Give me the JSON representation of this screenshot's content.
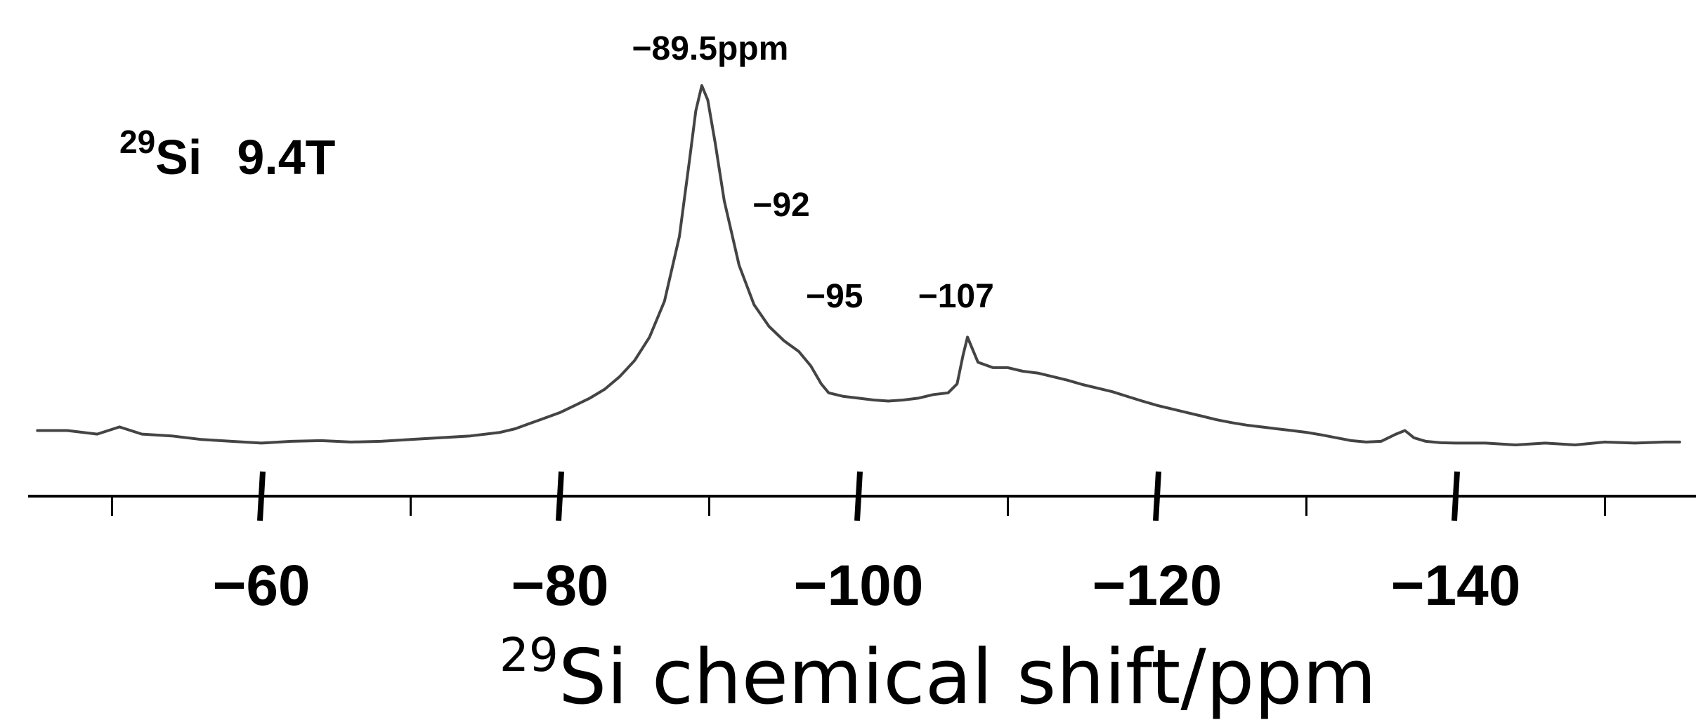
{
  "chart_data": {
    "type": "line",
    "title": "",
    "annotation": {
      "isotope_mass": "29",
      "nucleus": "Si",
      "field": "9.4T"
    },
    "xlabel": {
      "isotope_mass": "29",
      "text": "Si chemical shift/ppm"
    },
    "ylabel": "",
    "xlim": [
      -45,
      -155
    ],
    "grid": false,
    "legend": "none",
    "x_ticks": [
      {
        "value": -60,
        "label": "−60"
      },
      {
        "value": -80,
        "label": "−80"
      },
      {
        "value": -100,
        "label": "−100"
      },
      {
        "value": -120,
        "label": "−120"
      },
      {
        "value": -140,
        "label": "−140"
      }
    ],
    "x_minor_ticks": [
      -50,
      -70,
      -90,
      -110,
      -130,
      -150
    ],
    "peak_labels": [
      {
        "x": -89.5,
        "label": "−89.5ppm"
      },
      {
        "x": -92,
        "label": "−92"
      },
      {
        "x": -95,
        "label": "−95"
      },
      {
        "x": -107,
        "label": "−107"
      }
    ],
    "series": [
      {
        "color": "#444444",
        "points": [
          [
            -45,
            0.04
          ],
          [
            -47,
            0.04
          ],
          [
            -49,
            0.03
          ],
          [
            -50.5,
            0.05
          ],
          [
            -52,
            0.03
          ],
          [
            -54,
            0.025
          ],
          [
            -56,
            0.015
          ],
          [
            -58,
            0.01
          ],
          [
            -60,
            0.005
          ],
          [
            -62,
            0.01
          ],
          [
            -64,
            0.012
          ],
          [
            -66,
            0.008
          ],
          [
            -68,
            0.01
          ],
          [
            -70,
            0.015
          ],
          [
            -72,
            0.02
          ],
          [
            -74,
            0.025
          ],
          [
            -76,
            0.035
          ],
          [
            -77,
            0.045
          ],
          [
            -78,
            0.06
          ],
          [
            -79,
            0.075
          ],
          [
            -80,
            0.09
          ],
          [
            -81,
            0.11
          ],
          [
            -82,
            0.13
          ],
          [
            -83,
            0.155
          ],
          [
            -84,
            0.19
          ],
          [
            -85,
            0.235
          ],
          [
            -86,
            0.3
          ],
          [
            -87,
            0.4
          ],
          [
            -88,
            0.58
          ],
          [
            -88.7,
            0.8
          ],
          [
            -89.1,
            0.93
          ],
          [
            -89.5,
            1.0
          ],
          [
            -89.9,
            0.96
          ],
          [
            -90.4,
            0.84
          ],
          [
            -91,
            0.68
          ],
          [
            -92,
            0.5
          ],
          [
            -93,
            0.39
          ],
          [
            -94,
            0.33
          ],
          [
            -95,
            0.29
          ],
          [
            -96,
            0.26
          ],
          [
            -96.8,
            0.22
          ],
          [
            -97.5,
            0.17
          ],
          [
            -98,
            0.145
          ],
          [
            -99,
            0.135
          ],
          [
            -100,
            0.13
          ],
          [
            -101,
            0.125
          ],
          [
            -102,
            0.122
          ],
          [
            -103,
            0.125
          ],
          [
            -104,
            0.13
          ],
          [
            -105,
            0.14
          ],
          [
            -106,
            0.145
          ],
          [
            -106.6,
            0.17
          ],
          [
            -107,
            0.25
          ],
          [
            -107.3,
            0.3
          ],
          [
            -107.6,
            0.27
          ],
          [
            -108,
            0.23
          ],
          [
            -109,
            0.215
          ],
          [
            -110,
            0.215
          ],
          [
            -111,
            0.205
          ],
          [
            -112,
            0.2
          ],
          [
            -113,
            0.19
          ],
          [
            -114,
            0.18
          ],
          [
            -115,
            0.168
          ],
          [
            -116,
            0.158
          ],
          [
            -117,
            0.148
          ],
          [
            -118,
            0.135
          ],
          [
            -119,
            0.122
          ],
          [
            -120,
            0.11
          ],
          [
            -121,
            0.1
          ],
          [
            -122,
            0.09
          ],
          [
            -123,
            0.08
          ],
          [
            -124,
            0.07
          ],
          [
            -125,
            0.062
          ],
          [
            -126,
            0.055
          ],
          [
            -127,
            0.05
          ],
          [
            -128,
            0.045
          ],
          [
            -129,
            0.04
          ],
          [
            -130,
            0.035
          ],
          [
            -131,
            0.028
          ],
          [
            -132,
            0.02
          ],
          [
            -133,
            0.012
          ],
          [
            -134,
            0.008
          ],
          [
            -135,
            0.01
          ],
          [
            -136,
            0.03
          ],
          [
            -136.6,
            0.04
          ],
          [
            -137.2,
            0.02
          ],
          [
            -138,
            0.01
          ],
          [
            -139,
            0.006
          ],
          [
            -140,
            0.005
          ],
          [
            -142,
            0.005
          ],
          [
            -144,
            0.0
          ],
          [
            -146,
            0.005
          ],
          [
            -148,
            0.0
          ],
          [
            -150,
            0.008
          ],
          [
            -152,
            0.005
          ],
          [
            -154,
            0.008
          ],
          [
            -155,
            0.008
          ]
        ]
      }
    ]
  }
}
